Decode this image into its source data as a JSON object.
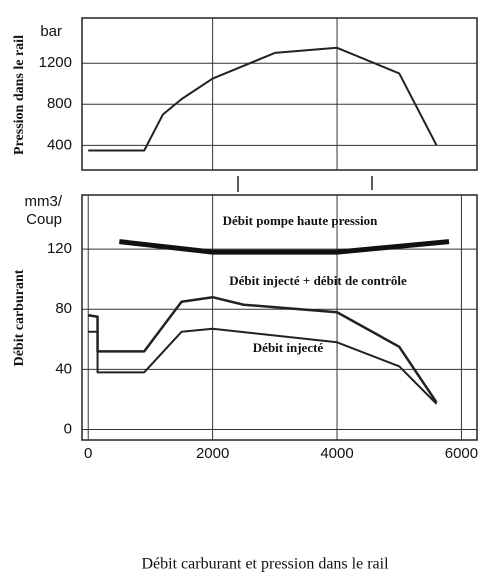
{
  "chart_data": [
    {
      "type": "line",
      "y_label": "Pression dans le rail",
      "y_unit": [
        "bar"
      ],
      "xlim": [
        -100,
        6250
      ],
      "xticks": [
        2000,
        4000
      ],
      "xtick_labels": false,
      "ylim": [
        160,
        1640
      ],
      "yticks": [
        400,
        800,
        1200
      ],
      "grid": true,
      "series": [
        {
          "color": "#222222",
          "width": 2,
          "x": [
            0,
            900,
            1200,
            1500,
            2000,
            3000,
            4000,
            5000,
            5600
          ],
          "values": [
            350,
            350,
            700,
            850,
            1050,
            1300,
            1350,
            1100,
            400
          ]
        }
      ]
    },
    {
      "type": "line",
      "y_label": "Débit carburant",
      "y_unit": [
        "mm3/",
        "Coup"
      ],
      "xlim": [
        -100,
        6250
      ],
      "xticks": [
        0,
        2000,
        4000,
        6000
      ],
      "xtick_labels": true,
      "ylim": [
        -7,
        156
      ],
      "yticks": [
        0,
        40,
        80,
        120
      ],
      "grid": true,
      "series": [
        {
          "name": "Débit pompe haute pression",
          "color": "#111111",
          "width": 5,
          "x": [
            500,
            2000,
            4000,
            5800
          ],
          "values": [
            125,
            118,
            118,
            125
          ]
        },
        {
          "name": "Débit injecté + débit de contrôle",
          "color": "#222222",
          "width": 2.5,
          "x": [
            0,
            150,
            150,
            900,
            1500,
            2000,
            2500,
            4000,
            5000,
            5600
          ],
          "values": [
            76,
            75,
            52,
            52,
            85,
            88,
            83,
            78,
            55,
            18
          ]
        },
        {
          "name": "Débit injecté",
          "color": "#222222",
          "width": 2,
          "x": [
            0,
            150,
            150,
            900,
            1500,
            2000,
            4000,
            5000,
            5600
          ],
          "values": [
            65,
            65,
            38,
            38,
            65,
            67,
            58,
            42,
            17
          ]
        }
      ]
    }
  ],
  "caption": "Débit carburant et pression dans le rail"
}
